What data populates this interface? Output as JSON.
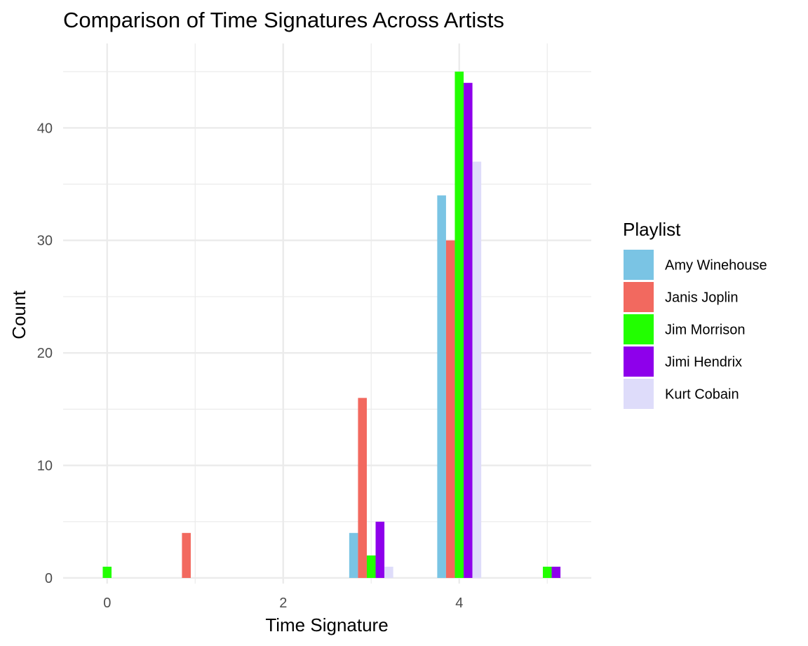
{
  "chart_data": {
    "type": "bar",
    "title": "Comparison of Time Signatures Across Artists",
    "xlabel": "Time Signature",
    "ylabel": "Count",
    "x_ticks": [
      0,
      2,
      4
    ],
    "y_ticks": [
      0,
      10,
      20,
      30,
      40
    ],
    "xlim": [
      -0.5,
      5.5
    ],
    "ylim": [
      -0.5,
      47.5
    ],
    "grid": true,
    "legend": {
      "title": "Playlist",
      "placement": "right"
    },
    "categories": [
      0,
      1,
      3,
      4,
      5
    ],
    "series": [
      {
        "name": "Amy Winehouse",
        "color": "#7AC4E4",
        "values": [
          0,
          0,
          4,
          34,
          0
        ]
      },
      {
        "name": "Janis Joplin",
        "color": "#F2695F",
        "values": [
          0,
          4,
          16,
          30,
          0
        ]
      },
      {
        "name": "Jim Morrison",
        "color": "#22FF00",
        "values": [
          1,
          0,
          2,
          45,
          1
        ]
      },
      {
        "name": "Jimi Hendrix",
        "color": "#8E00EB",
        "values": [
          0,
          0,
          5,
          44,
          1
        ]
      },
      {
        "name": "Kurt Cobain",
        "color": "#DEDCFA",
        "values": [
          0,
          0,
          1,
          37,
          0
        ]
      }
    ]
  }
}
